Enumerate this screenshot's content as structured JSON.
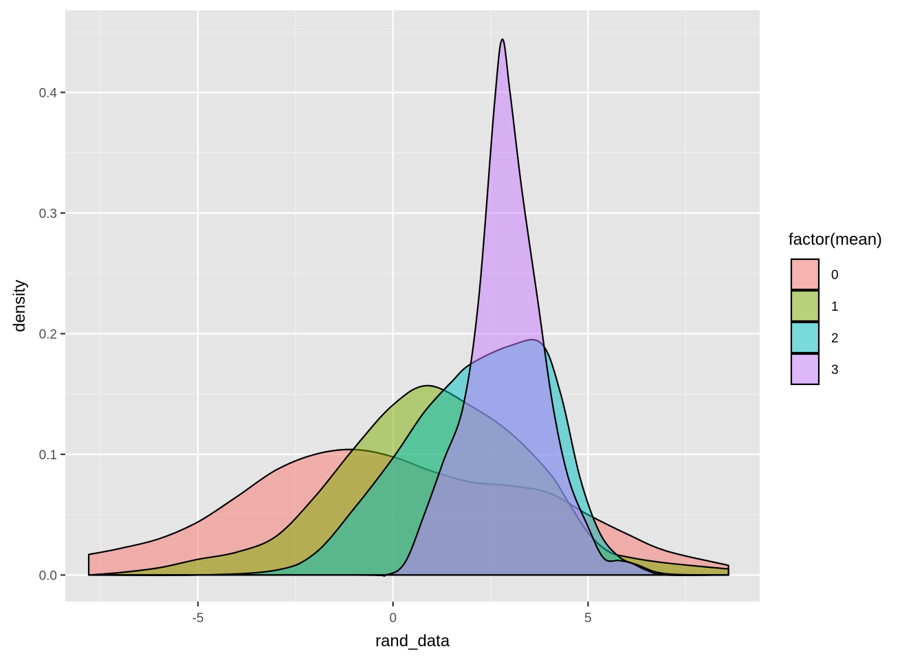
{
  "chart_data": {
    "type": "area",
    "xlabel": "rand_data",
    "ylabel": "density",
    "xlim": [
      -8.4,
      9.4
    ],
    "ylim": [
      -0.022,
      0.468
    ],
    "x_ticks": [
      -5,
      0,
      5
    ],
    "x_tick_labels": [
      "-5",
      "0",
      "5"
    ],
    "y_ticks": [
      0.0,
      0.1,
      0.2,
      0.3,
      0.4
    ],
    "y_tick_labels": [
      "0.0",
      "0.1",
      "0.2",
      "0.3",
      "0.4"
    ],
    "grid": true,
    "background": "#e5e5e5",
    "legend": {
      "title": "factor(mean)",
      "placement": "right"
    },
    "fill_opacity": 0.5,
    "series": [
      {
        "name": "0",
        "color": "#f8766d",
        "points": [
          [
            -7.8,
            0.017
          ],
          [
            -7,
            0.022
          ],
          [
            -6,
            0.03
          ],
          [
            -5,
            0.044
          ],
          [
            -4,
            0.065
          ],
          [
            -3,
            0.087
          ],
          [
            -2,
            0.1
          ],
          [
            -1,
            0.104
          ],
          [
            0,
            0.098
          ],
          [
            1,
            0.086
          ],
          [
            2,
            0.077
          ],
          [
            3,
            0.074
          ],
          [
            4,
            0.068
          ],
          [
            5,
            0.05
          ],
          [
            6,
            0.034
          ],
          [
            7,
            0.02
          ],
          [
            8.6,
            0.008
          ]
        ]
      },
      {
        "name": "1",
        "color": "#7cae00",
        "points": [
          [
            -7.8,
            0.0
          ],
          [
            -7,
            0.002
          ],
          [
            -6,
            0.006
          ],
          [
            -5,
            0.013
          ],
          [
            -4,
            0.019
          ],
          [
            -3,
            0.032
          ],
          [
            -2,
            0.065
          ],
          [
            -1,
            0.105
          ],
          [
            0,
            0.141
          ],
          [
            0.9,
            0.157
          ],
          [
            2,
            0.14
          ],
          [
            3,
            0.118
          ],
          [
            4,
            0.085
          ],
          [
            4.5,
            0.06
          ],
          [
            5,
            0.035
          ],
          [
            5.5,
            0.02
          ],
          [
            6,
            0.015
          ],
          [
            7,
            0.01
          ],
          [
            8.6,
            0.005
          ]
        ]
      },
      {
        "name": "2",
        "color": "#00bfc4",
        "points": [
          [
            -7.8,
            0.0
          ],
          [
            -5,
            0.0
          ],
          [
            -3,
            0.004
          ],
          [
            -2,
            0.018
          ],
          [
            -1,
            0.055
          ],
          [
            0,
            0.097
          ],
          [
            0.8,
            0.135
          ],
          [
            1.5,
            0.16
          ],
          [
            2,
            0.175
          ],
          [
            3,
            0.19
          ],
          [
            3.8,
            0.192
          ],
          [
            4.3,
            0.15
          ],
          [
            4.8,
            0.08
          ],
          [
            5.3,
            0.035
          ],
          [
            5.8,
            0.015
          ],
          [
            6.3,
            0.008
          ],
          [
            7,
            0.001
          ],
          [
            8.6,
            0.0
          ]
        ]
      },
      {
        "name": "3",
        "color": "#c77cff",
        "points": [
          [
            -7.8,
            0.0
          ],
          [
            -1,
            0.0
          ],
          [
            -0.2,
            0.0
          ],
          [
            0.3,
            0.01
          ],
          [
            0.8,
            0.05
          ],
          [
            1.3,
            0.095
          ],
          [
            1.8,
            0.14
          ],
          [
            2.2,
            0.23
          ],
          [
            2.6,
            0.39
          ],
          [
            2.8,
            0.444
          ],
          [
            3,
            0.4
          ],
          [
            3.3,
            0.32
          ],
          [
            3.7,
            0.23
          ],
          [
            4.1,
            0.14
          ],
          [
            4.5,
            0.08
          ],
          [
            5,
            0.04
          ],
          [
            5.4,
            0.014
          ],
          [
            5.8,
            0.012
          ],
          [
            6.1,
            0.01
          ],
          [
            6.5,
            0.004
          ],
          [
            7,
            0.0
          ],
          [
            8.6,
            0.0
          ]
        ]
      }
    ]
  }
}
